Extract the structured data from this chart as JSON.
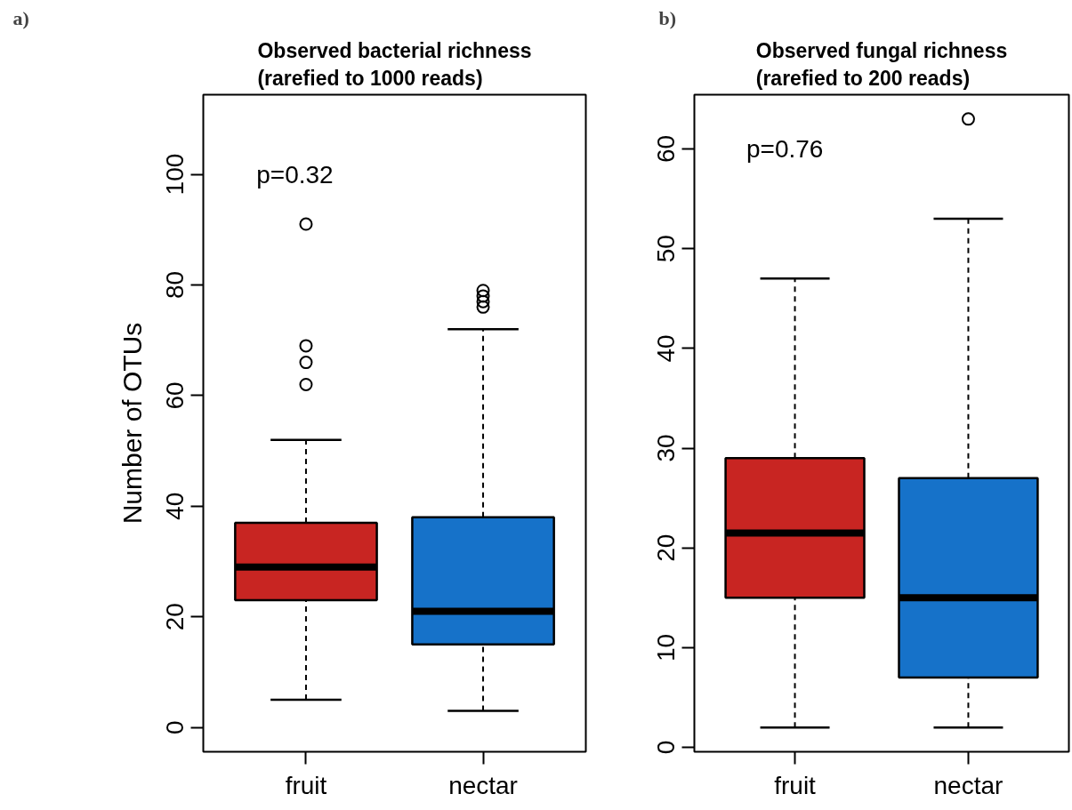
{
  "chart_data": [
    {
      "type": "box",
      "title": "Observed bacterial richness\n(rarefied to 1000 reads)",
      "ylabel": "Number of OTUs",
      "categories": [
        "fruit",
        "nectar"
      ],
      "colors": [
        "#c82522",
        "#1672c9"
      ],
      "boxes": [
        {
          "low": 5,
          "q1": 23,
          "median": 29,
          "q3": 37,
          "high": 52,
          "outliers": [
            62,
            66,
            69,
            91
          ]
        },
        {
          "low": 3,
          "q1": 15,
          "median": 21,
          "q3": 38,
          "high": 72,
          "outliers": [
            76,
            77,
            78,
            79
          ]
        }
      ],
      "ylim": [
        -4.4,
        114.4
      ],
      "yticks": [
        0,
        20,
        40,
        60,
        80,
        100
      ],
      "annotations": [
        "a)",
        "p=0.32"
      ]
    },
    {
      "type": "box",
      "title": "Observed fungal richness\n(rarefied to 200 reads)",
      "categories": [
        "fruit",
        "nectar"
      ],
      "colors": [
        "#c82522",
        "#1672c9"
      ],
      "boxes": [
        {
          "low": 2,
          "q1": 15,
          "median": 21.5,
          "q3": 29,
          "high": 47
        },
        {
          "low": 2,
          "q1": 7,
          "median": 15,
          "q3": 27,
          "high": 53,
          "outliers": [
            63
          ]
        }
      ],
      "ylim": [
        -0.44,
        65.44
      ],
      "yticks": [
        0,
        10,
        20,
        30,
        40,
        50,
        60
      ],
      "annotations": [
        "b)",
        "p=0.76"
      ]
    }
  ]
}
